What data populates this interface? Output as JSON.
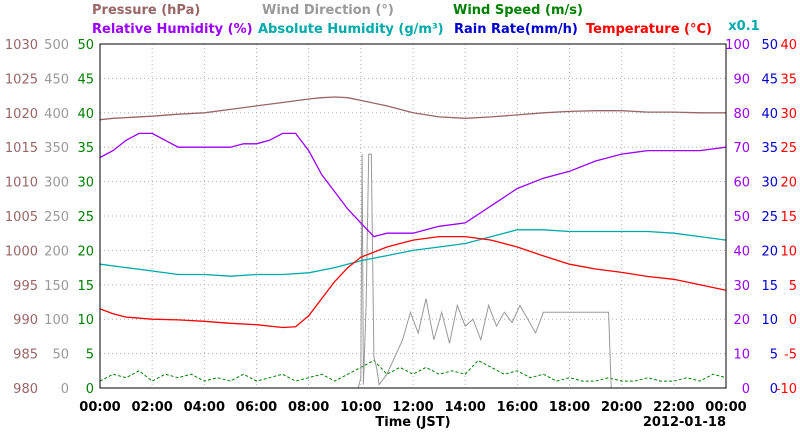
{
  "chart_data": {
    "type": "line",
    "x_unit": "hour (JST)",
    "date": "2012-01-18",
    "xlabel": "Time (JST)",
    "x_ticks": [
      "00:00",
      "02:00",
      "04:00",
      "06:00",
      "08:00",
      "10:00",
      "12:00",
      "14:00",
      "16:00",
      "18:00",
      "20:00",
      "22:00",
      "00:00"
    ],
    "grid": true,
    "legend_rows": [
      [
        {
          "text": "Pressure (hPa)",
          "color": "#996666"
        },
        {
          "text": "Wind Direction (°)",
          "color": "#999999"
        },
        {
          "text": "Wind Speed (m/s)",
          "color": "#008000"
        }
      ],
      [
        {
          "text": "Relative Humidity (%)",
          "color": "#9900ff"
        },
        {
          "text": "Absolute Humidity (g/m³)",
          "color": "#00aaaa"
        },
        {
          "text": "Rain Rate(mm/h)",
          "color": "#0000cc"
        },
        {
          "text": "Temperature (°C)",
          "color": "#ff0000"
        }
      ]
    ],
    "multiplier_label": "x0.1",
    "axes": [
      {
        "name": "Pressure (hPa)",
        "side": "left",
        "color": "#996666",
        "ylim": [
          980,
          1030
        ],
        "ticks": [
          "1030",
          "1025",
          "1020",
          "1015",
          "1010",
          "1005",
          "1000",
          "995",
          "990",
          "985",
          "980"
        ]
      },
      {
        "name": "Wind Direction (°)",
        "side": "left",
        "color": "#999999",
        "ylim": [
          0,
          500
        ],
        "ticks": [
          "500",
          "450",
          "400",
          "350",
          "300",
          "250",
          "200",
          "150",
          "100",
          "50",
          "0"
        ]
      },
      {
        "name": "Wind Speed (m/s)",
        "side": "left",
        "color": "#008000",
        "ylim": [
          0,
          50
        ],
        "ticks": [
          "50",
          "45",
          "40",
          "35",
          "30",
          "25",
          "20",
          "15",
          "10",
          "5",
          "0"
        ]
      },
      {
        "name": "Relative Humidity (%)",
        "side": "right",
        "color": "#9900ff",
        "ylim": [
          0,
          100
        ],
        "ticks": [
          "100",
          "90",
          "80",
          "70",
          "60",
          "50",
          "40",
          "30",
          "20",
          "10",
          "0"
        ]
      },
      {
        "name": "Rain Rate(mm/h)",
        "side": "right",
        "color": "#0000cc",
        "ylim": [
          0,
          50
        ],
        "ticks": [
          "50",
          "45",
          "40",
          "35",
          "30",
          "25",
          "20",
          "15",
          "10",
          "5",
          "0"
        ]
      },
      {
        "name": "Temperature (°C)",
        "side": "right",
        "color": "#ff0000",
        "ylim": [
          -10,
          40
        ],
        "ticks": [
          "40",
          "35",
          "30",
          "25",
          "20",
          "15",
          "10",
          "5",
          "0",
          "-5",
          "-10"
        ]
      }
    ],
    "series": [
      {
        "name": "Pressure (hPa)",
        "color": "#996666",
        "axis": 0,
        "x": [
          0,
          0.5,
          1,
          2,
          3,
          4,
          5,
          6,
          7,
          8,
          8.5,
          9,
          9.5,
          10,
          11,
          12,
          13,
          14,
          15,
          16,
          17,
          18,
          19,
          20,
          21,
          22,
          23,
          24
        ],
        "y": [
          1019,
          1019.2,
          1019.3,
          1019.5,
          1019.8,
          1020,
          1020.5,
          1021,
          1021.5,
          1022,
          1022.2,
          1022.3,
          1022.2,
          1021.8,
          1021,
          1020,
          1019.4,
          1019.2,
          1019.4,
          1019.7,
          1020,
          1020.2,
          1020.3,
          1020.3,
          1020.1,
          1020.1,
          1020,
          1020
        ]
      },
      {
        "name": "Relative Humidity (%)",
        "color": "#9900ff",
        "axis": 3,
        "x": [
          0,
          0.5,
          1,
          1.5,
          2,
          2.5,
          3,
          3.5,
          4,
          5,
          5.5,
          6,
          6.5,
          7,
          7.5,
          8,
          8.5,
          9,
          9.5,
          10,
          10.5,
          11,
          11.5,
          12,
          12.5,
          13,
          14,
          15,
          16,
          17,
          18,
          19,
          20,
          21,
          22,
          23,
          24
        ],
        "y": [
          67,
          69,
          72,
          74,
          74,
          72,
          70,
          70,
          70,
          70,
          71,
          71,
          72,
          74,
          74,
          69,
          62,
          57,
          52,
          48,
          44,
          45,
          45,
          45,
          46,
          47,
          48,
          53,
          58,
          61,
          63,
          66,
          68,
          69,
          69,
          69,
          70
        ]
      },
      {
        "name": "Absolute Humidity (g/m³)",
        "color": "#00aaaa",
        "axis": 3,
        "x": [
          0,
          1,
          2,
          3,
          4,
          5,
          6,
          7,
          8,
          9,
          10,
          11,
          12,
          13,
          14,
          15,
          16,
          17,
          18,
          19,
          20,
          21,
          22,
          23,
          24
        ],
        "y": [
          36,
          35,
          34,
          33,
          33,
          32.5,
          33,
          33,
          33.5,
          35,
          37,
          38.5,
          40,
          41,
          42,
          44,
          46,
          46,
          45.5,
          45.5,
          45.5,
          45.5,
          45,
          44,
          43
        ]
      },
      {
        "name": "Temperature (°C)",
        "color": "#ff0000",
        "axis": 5,
        "x": [
          0,
          0.5,
          1,
          2,
          3,
          4,
          5,
          6,
          7,
          7.5,
          8,
          8.5,
          9,
          9.5,
          10,
          11,
          12,
          13,
          14,
          15,
          16,
          17,
          18,
          19,
          20,
          21,
          22,
          23,
          24
        ],
        "y": [
          1.5,
          0.8,
          0.3,
          0,
          -0.1,
          -0.3,
          -0.6,
          -0.8,
          -1.2,
          -1.1,
          0.5,
          3,
          5.5,
          7.5,
          9,
          10.5,
          11.5,
          12,
          12,
          11.5,
          10.5,
          9.2,
          8,
          7.3,
          6.8,
          6.2,
          5.8,
          5,
          4.2
        ]
      },
      {
        "name": "Wind Direction (°)",
        "color": "#999999",
        "axis": 1,
        "x": [
          0,
          9.9,
          10.0,
          10.05,
          10.1,
          10.2,
          10.3,
          10.4,
          10.5,
          10.6,
          10.7,
          11.0,
          11.3,
          11.6,
          11.9,
          12.2,
          12.5,
          12.8,
          13.1,
          13.4,
          13.7,
          14.0,
          14.3,
          14.6,
          14.9,
          15.2,
          15.5,
          15.8,
          16.1,
          16.4,
          16.7,
          17.0,
          19.5,
          19.6,
          24
        ],
        "y": [
          0,
          0,
          15,
          340,
          5,
          120,
          340,
          340,
          45,
          30,
          5,
          20,
          45,
          70,
          110,
          80,
          130,
          70,
          110,
          65,
          120,
          90,
          100,
          70,
          120,
          90,
          110,
          95,
          120,
          100,
          80,
          110,
          110,
          0,
          0
        ]
      },
      {
        "name": "Wind Speed (m/s)",
        "color": "#008000",
        "axis": 2,
        "x": [
          0,
          0.5,
          1,
          1.5,
          2,
          2.5,
          3,
          3.5,
          4,
          4.5,
          5,
          5.5,
          6,
          6.5,
          7,
          7.5,
          8,
          8.5,
          9,
          9.5,
          10,
          10.5,
          11,
          11.5,
          12,
          12.5,
          13,
          13.5,
          14,
          14.5,
          15,
          15.5,
          16,
          16.5,
          17,
          17.5,
          18,
          18.5,
          19,
          19.5,
          20,
          20.5,
          21,
          21.5,
          22,
          22.5,
          23,
          23.5,
          24
        ],
        "y": [
          1,
          2,
          1.5,
          2.5,
          1,
          2,
          1.5,
          2,
          1,
          1.5,
          1,
          2,
          1,
          1.5,
          2,
          1,
          1.5,
          2,
          1,
          2,
          3,
          4,
          2,
          3,
          2,
          3,
          2,
          2.5,
          2,
          4,
          3,
          2,
          2.5,
          1.5,
          2,
          1,
          1.5,
          1,
          1,
          1.5,
          1,
          1,
          1.5,
          1,
          1,
          1.5,
          1,
          2,
          1.5
        ]
      }
    ]
  }
}
